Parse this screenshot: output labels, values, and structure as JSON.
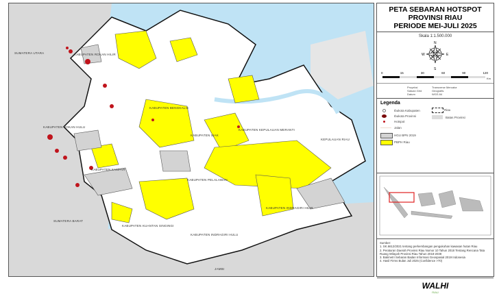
{
  "title": {
    "line1": "PETA SEBARAN HOTSPOT",
    "line2": "PROVINSI RIAU",
    "line3": "PERIODE MEI-JULI 2025"
  },
  "scale": {
    "text": "Skala 1:1.500.000",
    "ticks": [
      "0",
      "15",
      "30",
      "60",
      "90",
      "120"
    ],
    "unit": "Km"
  },
  "compass": {
    "n": "N",
    "e": "E",
    "s": "S",
    "w": "W"
  },
  "projection": {
    "labels": [
      "Proyeksi",
      "Satuan Grid",
      "Datum"
    ],
    "values": [
      "Transverse Mercator",
      "Geografis",
      "WGS 84"
    ]
  },
  "legend": {
    "title": "Legenda",
    "items": [
      {
        "label": "Ibukota Kabupaten",
        "icon": "circle-dot-icon"
      },
      {
        "label": "Ibukota Provinsi",
        "icon": "dark-red-dot-icon"
      },
      {
        "label": "Hotspot",
        "icon": "red-dot-icon"
      },
      {
        "label": "Jalan",
        "icon": "road-line-icon"
      },
      {
        "label": "HGU BPN 2019",
        "icon": "gray-box-icon"
      },
      {
        "label": "PBPH Riau",
        "icon": "yellow-box-icon"
      },
      {
        "label": "Riau",
        "icon": "dashed-box-icon"
      },
      {
        "label": "Batas Provinsi",
        "icon": "light-gray-box-icon"
      }
    ]
  },
  "sources": {
    "title": "Sumber:",
    "items": [
      "1. SK.6612/2021 tentang perkembangan pengukuhan kawasan hutan Riau",
      "2. Peraturan Daerah Provinsi Riau Nomor 10 Tahun 2018 Tentang Rencana Tata Ruang Wilayah Provinsi Riau Tahun 2018-2038",
      "3. Batimetri Sebaran Badan Informasi Geospasial 2019 Indonesia",
      "4. Hasil Firms Bulan Juli 2025 (Confidence >70)"
    ]
  },
  "logo": {
    "text": "WALHI",
    "sub": "RIAU"
  },
  "map_labels": [
    "SUMATERA UTARA",
    "KABUPATEN ROKAN HILIR",
    "KABUPATEN BENGKALIS",
    "KABUPATEN ROKAN HULU",
    "KABUPATEN SIAK",
    "KABUPATEN KEPULAUAN MERANTI",
    "KEPULAUAN RIAU",
    "KABUPATEN KAMPAR",
    "KABUPATEN PELALAWAN",
    "KABUPATEN INDRAGIRI HILIR",
    "KABUPATEN KUANTAN SINGINGI",
    "KABUPATEN INDRAGIRI HULU",
    "SUMATERA BARAT",
    "JAMBI"
  ],
  "colors": {
    "sea": "#bfe3f5",
    "land": "#ffffff",
    "neighbor": "#d9d9d9",
    "pbph": "#ffff00",
    "hgu": "#d3d3d3",
    "hotspot": "#c0141c",
    "inset_frame": "#e02020"
  }
}
